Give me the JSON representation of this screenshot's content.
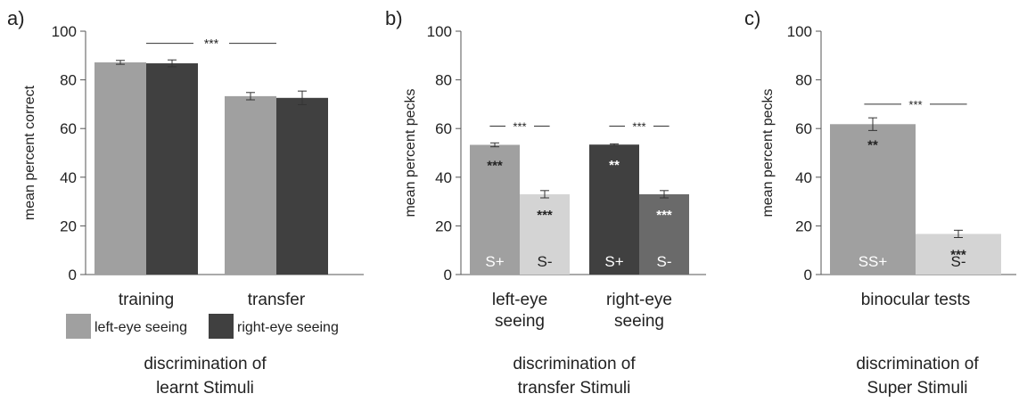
{
  "chart_data": [
    {
      "type": "bar",
      "panel_label": "a)",
      "ylabel": "mean percent correct",
      "ylim": [
        0,
        100
      ],
      "yticks": [
        0,
        20,
        40,
        60,
        80,
        100
      ],
      "categories": [
        "training",
        "transfer"
      ],
      "series": [
        {
          "name": "left-eye seeing",
          "color": "#a0a0a0",
          "values": [
            87.2,
            73.3
          ],
          "errors": [
            0.8,
            1.5
          ]
        },
        {
          "name": "right-eye seeing",
          "color": "#404040",
          "values": [
            86.8,
            72.6
          ],
          "errors": [
            1.4,
            2.8
          ]
        }
      ],
      "significance": [
        {
          "label": "***",
          "between": [
            "training",
            "transfer"
          ],
          "y": 95
        }
      ],
      "caption": [
        "discrimination of",
        "learnt Stimuli"
      ]
    },
    {
      "type": "bar",
      "panel_label": "b)",
      "ylabel": "mean percent pecks",
      "ylim": [
        0,
        100
      ],
      "yticks": [
        0,
        20,
        40,
        60,
        80,
        100
      ],
      "groups": [
        {
          "label_lines": [
            "left-eye",
            "seeing"
          ],
          "bars": [
            {
              "inner_label": "S+",
              "value": 53.3,
              "error": 0.8,
              "color": "#a0a0a0",
              "stars": "***"
            },
            {
              "inner_label": "S-",
              "value": 33.0,
              "error": 1.5,
              "color": "#d4d4d4",
              "stars": "***"
            }
          ],
          "significance": {
            "label": "***",
            "y": 61
          }
        },
        {
          "label_lines": [
            "right-eye",
            "seeing"
          ],
          "bars": [
            {
              "inner_label": "S+",
              "value": 53.4,
              "error": 0.3,
              "color": "#404040",
              "stars": "**"
            },
            {
              "inner_label": "S-",
              "value": 33.0,
              "error": 1.5,
              "color": "#6a6a6a",
              "stars": "***"
            }
          ],
          "significance": {
            "label": "***",
            "y": 61
          }
        }
      ],
      "caption": [
        "discrimination of",
        "transfer Stimuli"
      ]
    },
    {
      "type": "bar",
      "panel_label": "c)",
      "ylabel": "mean percent pecks",
      "ylim": [
        0,
        100
      ],
      "yticks": [
        0,
        20,
        40,
        60,
        80,
        100
      ],
      "groups": [
        {
          "label_lines": [
            "binocular tests"
          ],
          "bars": [
            {
              "inner_label": "SS+",
              "value": 61.8,
              "error": 2.6,
              "color": "#a0a0a0",
              "stars": "**"
            },
            {
              "inner_label": "S-",
              "value": 16.7,
              "error": 1.5,
              "color": "#d4d4d4",
              "stars": "***"
            }
          ],
          "significance": {
            "label": "***",
            "y": 70
          }
        }
      ],
      "caption": [
        "discrimination of",
        "Super Stimuli"
      ]
    }
  ]
}
